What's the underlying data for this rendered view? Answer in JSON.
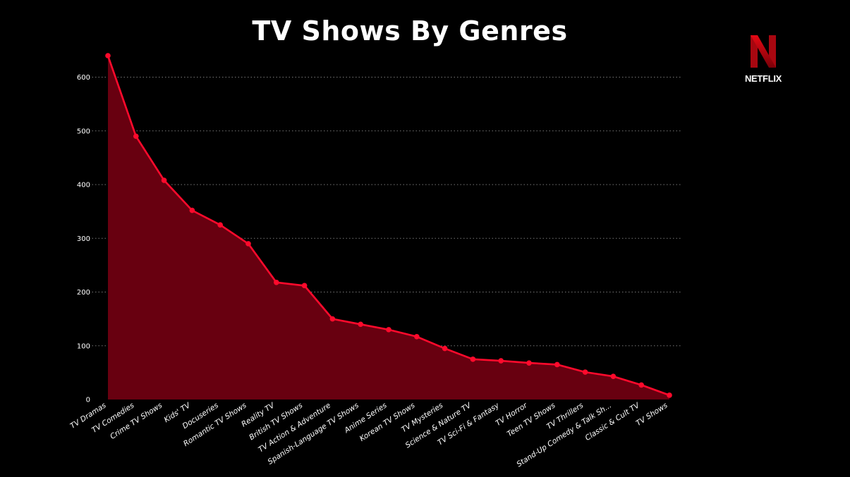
{
  "chart_data": {
    "type": "area",
    "title": "TV Shows By Genres",
    "xlabel": "",
    "ylabel": "",
    "ylim": [
      0,
      640
    ],
    "yticks": [
      0,
      100,
      200,
      300,
      400,
      500,
      600
    ],
    "grid": "horizontal-dotted",
    "categories": [
      "TV Dramas",
      "TV Comedies",
      "Crime TV Shows",
      "Kids' TV",
      "Docuseries",
      "Romantic TV Shows",
      "Reality TV",
      "British TV Shows",
      "TV Action & Adventure",
      "Spanish-Language TV Shows",
      "Anime Series",
      "Korean TV Shows",
      "TV Mysteries",
      "Science & Nature TV",
      "TV Sci-Fi & Fantasy",
      "TV Horror",
      "Teen TV Shows",
      "TV Thrillers",
      "Stand-Up Comedy & Talk Sh...",
      "Classic & Cult TV",
      "TV Shows"
    ],
    "values": [
      640,
      490,
      408,
      352,
      325,
      290,
      218,
      212,
      150,
      140,
      130,
      117,
      95,
      75,
      72,
      68,
      65,
      51,
      43,
      27,
      8
    ],
    "colors": {
      "line": "#ff0a2c",
      "fill": "#680010",
      "grid": "#777777",
      "background": "#000000"
    }
  },
  "logo": {
    "text": "NETFLIX",
    "icon": "netflix-n-logo"
  }
}
